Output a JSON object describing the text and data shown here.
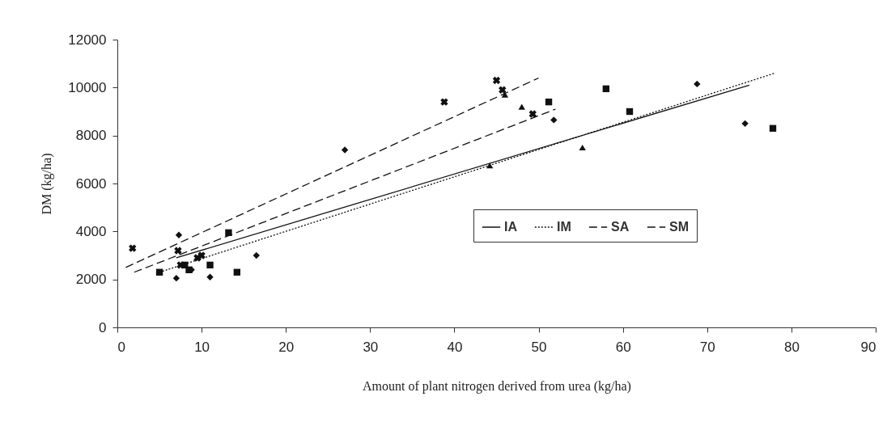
{
  "chart_data": {
    "type": "scatter",
    "xlabel": "Amount of plant nitrogen derived from urea (kg/ha)",
    "ylabel": "DM (kg/ha)",
    "xlim": [
      0,
      90
    ],
    "xticks": [
      0,
      10,
      20,
      30,
      40,
      50,
      60,
      70,
      80,
      90
    ],
    "ylim": [
      0,
      12000
    ],
    "yticks": [
      0,
      2000,
      4000,
      6000,
      8000,
      10000,
      12000
    ],
    "grid": false,
    "legend": "right",
    "series": [
      {
        "marker": "diamond",
        "color": "#111111",
        "x": [
          7.3,
          7,
          8.8,
          11,
          16.5,
          27,
          51.8,
          68.8,
          74.5
        ],
        "values": [
          3850,
          2050,
          2400,
          2100,
          3000,
          7400,
          8650,
          10150,
          8500
        ]
      },
      {
        "marker": "square",
        "color": "#111111",
        "x": [
          5,
          8,
          8.5,
          11,
          13.2,
          14.2,
          51.2,
          58,
          60.8,
          77.8
        ],
        "values": [
          2300,
          2600,
          2400,
          2600,
          3950,
          2300,
          9400,
          9950,
          9000,
          8300
        ]
      },
      {
        "marker": "triangle",
        "color": "#111111",
        "x": [
          44.2,
          46,
          48,
          55.2
        ],
        "values": [
          6750,
          9700,
          9200,
          7500
        ]
      },
      {
        "marker": "cross",
        "color": "#111111",
        "x": [
          1.8,
          7.2,
          7.5,
          9.5,
          10,
          38.8,
          45,
          45.7,
          49.3
        ],
        "values": [
          3300,
          3200,
          2600,
          2900,
          3000,
          9400,
          10300,
          9900,
          8900
        ]
      },
      {
        "type": "line",
        "name": "IA",
        "line_style": "solid",
        "color": "#111111",
        "x": [
          7,
          75
        ],
        "values": [
          2900,
          10100
        ]
      },
      {
        "type": "line",
        "name": "IM",
        "line_style": "dotted",
        "color": "#111111",
        "x": [
          5,
          78
        ],
        "values": [
          2300,
          10600
        ]
      },
      {
        "type": "line",
        "name": "SA",
        "line_style": "dashed",
        "color": "#111111",
        "x": [
          2,
          52
        ],
        "values": [
          2300,
          9100
        ]
      },
      {
        "type": "line",
        "name": "SM",
        "line_style": "dashed",
        "color": "#111111",
        "x": [
          1,
          50
        ],
        "values": [
          2500,
          10400
        ]
      }
    ]
  }
}
